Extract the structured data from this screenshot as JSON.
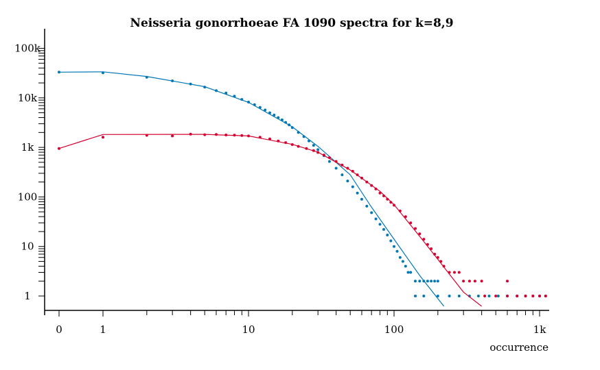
{
  "chart_data": {
    "type": "scatter",
    "title": "Neisseria gonorrhoeae FA 1090 spectra for k=8,9",
    "xlabel": "occurrence",
    "ylabel": "",
    "x_scale": "log1p",
    "y_scale": "log",
    "xlim": [
      0,
      1150
    ],
    "ylim": [
      0.5,
      180000
    ],
    "x_ticks": [
      {
        "value": 0,
        "label": "0"
      },
      {
        "value": 1,
        "label": "1"
      },
      {
        "value": 10,
        "label": "10"
      },
      {
        "value": 100,
        "label": "100"
      },
      {
        "value": 1000,
        "label": "1k"
      }
    ],
    "y_ticks": [
      {
        "value": 1,
        "label": "1"
      },
      {
        "value": 10,
        "label": "10"
      },
      {
        "value": 100,
        "label": "100"
      },
      {
        "value": 1000,
        "label": "1k"
      },
      {
        "value": 10000,
        "label": "10k"
      },
      {
        "value": 100000,
        "label": "100k"
      }
    ],
    "series": [
      {
        "color": "#0077b6",
        "points": [
          [
            0,
            33000
          ],
          [
            1,
            32000
          ],
          [
            2,
            26000
          ],
          [
            3,
            22000
          ],
          [
            4,
            19000
          ],
          [
            5,
            16500
          ],
          [
            6,
            14000
          ],
          [
            7,
            12500
          ],
          [
            8,
            10800
          ],
          [
            9,
            9300
          ],
          [
            10,
            8200
          ],
          [
            11,
            7300
          ],
          [
            12,
            6400
          ],
          [
            13,
            5700
          ],
          [
            14,
            5000
          ],
          [
            15,
            4500
          ],
          [
            16,
            4000
          ],
          [
            17,
            3600
          ],
          [
            18,
            3200
          ],
          [
            19,
            2850
          ],
          [
            20,
            2500
          ],
          [
            22,
            2000
          ],
          [
            24,
            1650
          ],
          [
            26,
            1350
          ],
          [
            28,
            1100
          ],
          [
            30,
            900
          ],
          [
            33,
            680
          ],
          [
            36,
            520
          ],
          [
            40,
            380
          ],
          [
            44,
            280
          ],
          [
            48,
            210
          ],
          [
            52,
            160
          ],
          [
            56,
            120
          ],
          [
            60,
            90
          ],
          [
            65,
            65
          ],
          [
            70,
            48
          ],
          [
            75,
            36
          ],
          [
            80,
            28
          ],
          [
            85,
            22
          ],
          [
            90,
            17
          ],
          [
            95,
            13
          ],
          [
            100,
            10
          ],
          [
            105,
            8
          ],
          [
            110,
            6
          ],
          [
            115,
            5
          ],
          [
            120,
            4
          ],
          [
            125,
            3
          ],
          [
            130,
            3
          ],
          [
            140,
            2
          ],
          [
            150,
            2
          ],
          [
            160,
            2
          ],
          [
            170,
            2
          ],
          [
            180,
            2
          ],
          [
            190,
            2
          ],
          [
            200,
            2
          ],
          [
            140,
            1
          ],
          [
            160,
            1
          ],
          [
            200,
            1
          ],
          [
            240,
            1
          ],
          [
            280,
            1
          ],
          [
            330,
            1
          ],
          [
            380,
            1
          ],
          [
            450,
            1
          ],
          [
            520,
            1
          ],
          [
            600,
            1
          ],
          [
            700,
            1
          ],
          [
            800,
            1
          ],
          [
            900,
            1
          ],
          [
            1000,
            1
          ],
          [
            1100,
            1
          ]
        ],
        "fit": [
          [
            0,
            33000
          ],
          [
            1,
            33500
          ],
          [
            2,
            27000
          ],
          [
            5,
            16800
          ],
          [
            10,
            8100
          ],
          [
            20,
            2600
          ],
          [
            30,
            1050
          ],
          [
            50,
            280
          ],
          [
            70,
            62
          ],
          [
            100,
            14
          ],
          [
            150,
            2.6
          ],
          [
            220,
            0.62
          ]
        ]
      },
      {
        "color": "#d6002f",
        "points": [
          [
            0,
            950
          ],
          [
            1,
            1600
          ],
          [
            2,
            1750
          ],
          [
            3,
            1700
          ],
          [
            4,
            1850
          ],
          [
            5,
            1800
          ],
          [
            6,
            1820
          ],
          [
            7,
            1780
          ],
          [
            8,
            1760
          ],
          [
            9,
            1740
          ],
          [
            10,
            1700
          ],
          [
            12,
            1600
          ],
          [
            14,
            1480
          ],
          [
            16,
            1350
          ],
          [
            18,
            1250
          ],
          [
            20,
            1140
          ],
          [
            22,
            1050
          ],
          [
            25,
            950
          ],
          [
            28,
            860
          ],
          [
            30,
            790
          ],
          [
            33,
            700
          ],
          [
            36,
            620
          ],
          [
            40,
            520
          ],
          [
            44,
            440
          ],
          [
            48,
            380
          ],
          [
            52,
            330
          ],
          [
            56,
            280
          ],
          [
            60,
            240
          ],
          [
            65,
            200
          ],
          [
            70,
            170
          ],
          [
            75,
            145
          ],
          [
            80,
            120
          ],
          [
            85,
            105
          ],
          [
            90,
            90
          ],
          [
            95,
            78
          ],
          [
            100,
            68
          ],
          [
            110,
            52
          ],
          [
            120,
            40
          ],
          [
            130,
            30
          ],
          [
            140,
            23
          ],
          [
            150,
            18
          ],
          [
            160,
            14
          ],
          [
            170,
            11
          ],
          [
            180,
            9
          ],
          [
            190,
            7
          ],
          [
            200,
            6
          ],
          [
            210,
            5
          ],
          [
            220,
            4
          ],
          [
            240,
            3
          ],
          [
            260,
            3
          ],
          [
            280,
            3
          ],
          [
            300,
            2
          ],
          [
            330,
            2
          ],
          [
            360,
            2
          ],
          [
            400,
            2
          ],
          [
            600,
            2
          ],
          [
            420,
            1
          ],
          [
            500,
            1
          ],
          [
            600,
            1
          ],
          [
            700,
            1
          ],
          [
            800,
            1
          ],
          [
            900,
            1
          ],
          [
            1000,
            1
          ],
          [
            1100,
            1
          ]
        ],
        "fit": [
          [
            0,
            950
          ],
          [
            1,
            1820
          ],
          [
            5,
            1830
          ],
          [
            10,
            1700
          ],
          [
            20,
            1150
          ],
          [
            30,
            800
          ],
          [
            50,
            350
          ],
          [
            80,
            130
          ],
          [
            100,
            70
          ],
          [
            150,
            16
          ],
          [
            200,
            5.5
          ],
          [
            300,
            1.2
          ],
          [
            400,
            0.62
          ]
        ]
      }
    ]
  }
}
